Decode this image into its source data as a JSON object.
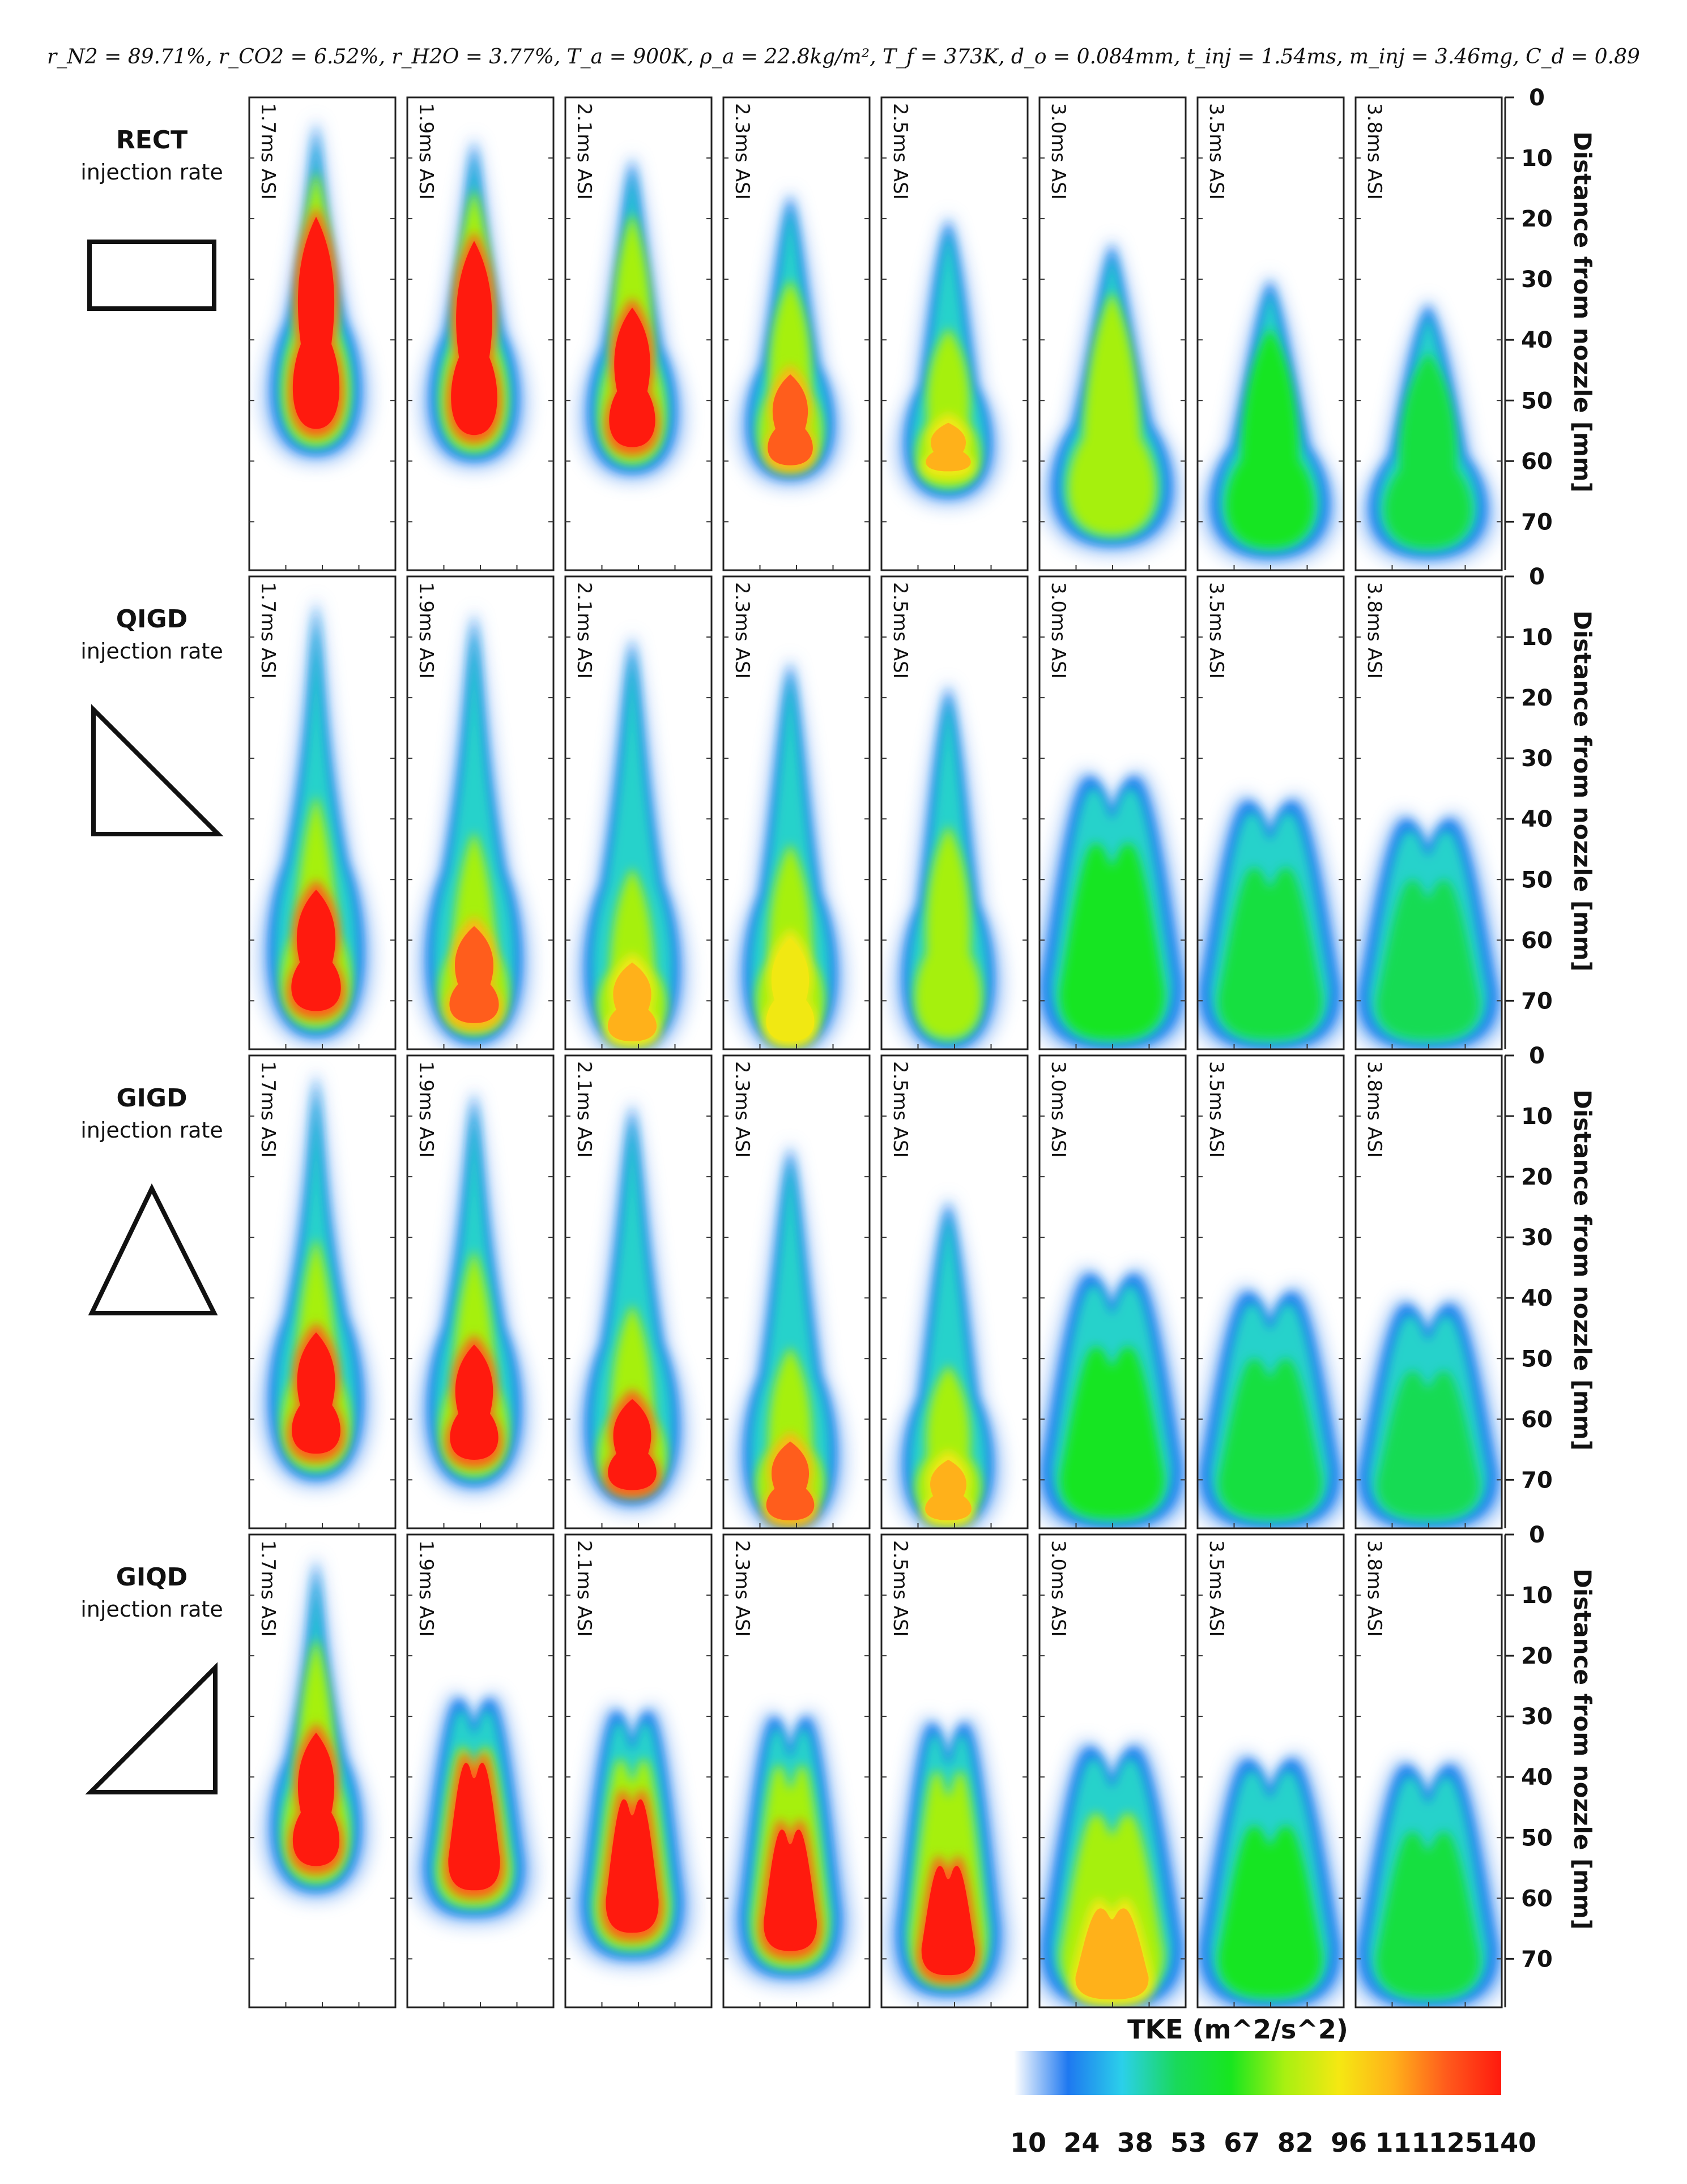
{
  "header": {
    "params_text": "r_N2 = 89.71%, r_CO2 = 6.52%, r_H2O = 3.77%, T_a = 900K, ρ_a = 22.8kg/m², T_f = 373K, d_o = 0.084mm, t_inj = 1.54ms, m_inj = 3.46mg, C_d = 0.89"
  },
  "chart_data": {
    "type": "heatmap",
    "title": "",
    "quantity": "TKE",
    "colorbar": {
      "label": "TKE (m^2/s^2)",
      "ticks": [
        "10",
        "24",
        "38",
        "53",
        "67",
        "82",
        "96",
        "111",
        "125",
        "140"
      ],
      "range": [
        10,
        140
      ],
      "colors": [
        "#ffffff",
        "#1e78f0",
        "#2bd0ea",
        "#19d95a",
        "#17e61f",
        "#a8f011",
        "#f5e812",
        "#ffb11a",
        "#ff5a1c",
        "#ff1a0e"
      ]
    },
    "ylabel": "Distance from nozzle [mm]",
    "y_ticks": [
      "0",
      "10",
      "20",
      "30",
      "40",
      "50",
      "60",
      "70"
    ],
    "ylim": [
      0,
      78
    ],
    "times": [
      "1.7ms ASI",
      "1.9ms ASI",
      "2.1ms ASI",
      "2.3ms ASI",
      "2.5ms ASI",
      "3.0ms ASI",
      "3.5ms ASI",
      "3.8ms ASI"
    ],
    "rows": [
      {
        "name": "RECT",
        "subtitle": "injection rate",
        "shape": "rectangle",
        "panels": [
          {
            "tip": 4,
            "head": 59,
            "high_start": 18,
            "high_end": 56,
            "peak": 140,
            "split": false
          },
          {
            "tip": 7,
            "head": 60,
            "high_start": 22,
            "high_end": 57,
            "peak": 140,
            "split": false
          },
          {
            "tip": 10,
            "head": 62,
            "high_start": 33,
            "high_end": 59,
            "peak": 140,
            "split": false
          },
          {
            "tip": 16,
            "head": 63,
            "high_start": 44,
            "high_end": 62,
            "peak": 125,
            "split": false
          },
          {
            "tip": 20,
            "head": 66,
            "high_start": 52,
            "high_end": 63,
            "peak": 111,
            "split": false
          },
          {
            "tip": 24,
            "head": 74,
            "high_start": 45,
            "high_end": 70,
            "peak": 82,
            "split": false
          },
          {
            "tip": 30,
            "head": 76,
            "high_start": 50,
            "high_end": 74,
            "peak": 67,
            "split": false
          },
          {
            "tip": 34,
            "head": 76,
            "high_start": 52,
            "high_end": 74,
            "peak": 60,
            "split": false
          }
        ]
      },
      {
        "name": "QIGD",
        "subtitle": "injection rate",
        "shape": "decreasing-triangle",
        "panels": [
          {
            "tip": 4,
            "head": 76,
            "high_start": 50,
            "high_end": 73,
            "peak": 140,
            "split": false
          },
          {
            "tip": 6,
            "head": 77,
            "high_start": 56,
            "high_end": 75,
            "peak": 125,
            "split": false
          },
          {
            "tip": 10,
            "head": 78,
            "high_start": 62,
            "high_end": 78,
            "peak": 111,
            "split": false
          },
          {
            "tip": 14,
            "head": 78,
            "high_start": 58,
            "high_end": 78,
            "peak": 96,
            "split": false
          },
          {
            "tip": 18,
            "head": 78,
            "high_start": 55,
            "high_end": 78,
            "peak": 82,
            "split": false
          },
          {
            "tip": 33,
            "head": 78,
            "high_start": 58,
            "high_end": 78,
            "peak": 67,
            "split": true
          },
          {
            "tip": 37,
            "head": 78,
            "high_start": 62,
            "high_end": 78,
            "peak": 60,
            "split": true
          },
          {
            "tip": 40,
            "head": 78,
            "high_start": 64,
            "high_end": 78,
            "peak": 55,
            "split": true
          }
        ]
      },
      {
        "name": "GIGD",
        "subtitle": "injection rate",
        "shape": "triangle",
        "panels": [
          {
            "tip": 3,
            "head": 70,
            "high_start": 44,
            "high_end": 67,
            "peak": 140,
            "split": false
          },
          {
            "tip": 6,
            "head": 71,
            "high_start": 46,
            "high_end": 68,
            "peak": 140,
            "split": false
          },
          {
            "tip": 8,
            "head": 74,
            "high_start": 55,
            "high_end": 73,
            "peak": 140,
            "split": false
          },
          {
            "tip": 15,
            "head": 78,
            "high_start": 62,
            "high_end": 78,
            "peak": 125,
            "split": false
          },
          {
            "tip": 24,
            "head": 78,
            "high_start": 65,
            "high_end": 78,
            "peak": 111,
            "split": false
          },
          {
            "tip": 36,
            "head": 78,
            "high_start": 62,
            "high_end": 78,
            "peak": 67,
            "split": true
          },
          {
            "tip": 39,
            "head": 78,
            "high_start": 64,
            "high_end": 78,
            "peak": 60,
            "split": true
          },
          {
            "tip": 41,
            "head": 78,
            "high_start": 66,
            "high_end": 78,
            "peak": 55,
            "split": true
          }
        ]
      },
      {
        "name": "GIQD",
        "subtitle": "injection rate",
        "shape": "increasing-triangle",
        "panels": [
          {
            "tip": 4,
            "head": 59,
            "high_start": 31,
            "high_end": 56,
            "peak": 140,
            "split": false
          },
          {
            "tip": 27,
            "head": 63,
            "high_start": 36,
            "high_end": 60,
            "peak": 140,
            "split": true
          },
          {
            "tip": 29,
            "head": 70,
            "high_start": 42,
            "high_end": 67,
            "peak": 140,
            "split": true
          },
          {
            "tip": 30,
            "head": 73,
            "high_start": 47,
            "high_end": 70,
            "peak": 140,
            "split": true
          },
          {
            "tip": 31,
            "head": 76,
            "high_start": 53,
            "high_end": 74,
            "peak": 140,
            "split": true
          },
          {
            "tip": 35,
            "head": 78,
            "high_start": 60,
            "high_end": 78,
            "peak": 111,
            "split": true
          },
          {
            "tip": 37,
            "head": 78,
            "high_start": 62,
            "high_end": 78,
            "peak": 67,
            "split": true
          },
          {
            "tip": 38,
            "head": 78,
            "high_start": 63,
            "high_end": 78,
            "peak": 60,
            "split": true
          }
        ]
      }
    ]
  }
}
